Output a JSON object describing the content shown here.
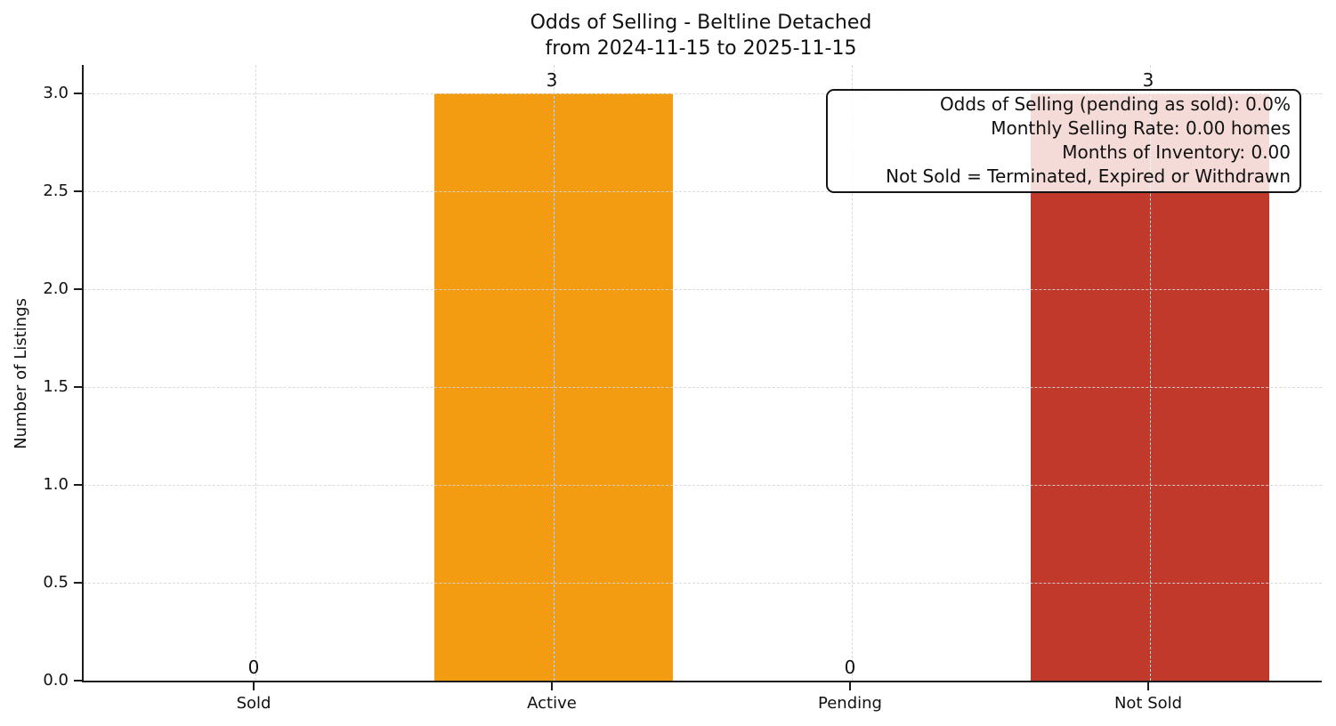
{
  "chart_data": {
    "type": "bar",
    "title": "Odds of Selling - Beltline Detached",
    "subtitle": "from 2024-11-15 to 2025-11-15",
    "ylabel": "Number of Listings",
    "xlabel": "",
    "categories": [
      "Sold",
      "Active",
      "Pending",
      "Not Sold"
    ],
    "values": [
      0,
      3,
      0,
      3
    ],
    "value_labels": [
      "0",
      "3",
      "0",
      "3"
    ],
    "bar_colors": [
      null,
      "#f39c12",
      null,
      "#c0392b"
    ],
    "ylim": [
      0,
      3.145
    ],
    "yticks": {
      "values": [
        0,
        0.5,
        1,
        1.5,
        2,
        2.5,
        3
      ],
      "labels": [
        "0.0",
        "0.5",
        "1.0",
        "1.5",
        "2.0",
        "2.5",
        "3.0"
      ]
    },
    "grid": {
      "visible": true,
      "style": "dashed",
      "color": "#d6d6d6"
    },
    "legend_position": "none",
    "axis_color": "#1c1c1c",
    "annotation": {
      "position": "top-right",
      "lines": [
        "Odds of Selling (pending as sold): 0.0%",
        "Monthly Selling Rate: 0.00 homes",
        "Months of Inventory: 0.00",
        "Not Sold = Terminated, Expired or Withdrawn"
      ]
    }
  }
}
